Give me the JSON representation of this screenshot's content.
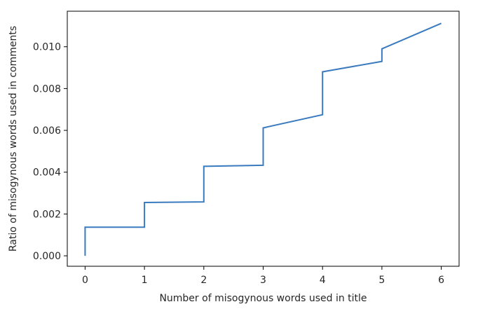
{
  "chart_data": {
    "type": "line",
    "title": "",
    "xlabel": "Number of misogynous words used in title",
    "ylabel": "Ratio of misogynous words used in comments",
    "xlim": [
      -0.3,
      6.3
    ],
    "ylim": [
      -0.0005,
      0.0117
    ],
    "xticks": [
      0,
      1,
      2,
      3,
      4,
      5,
      6
    ],
    "xtick_labels": [
      "0",
      "1",
      "2",
      "3",
      "4",
      "5",
      "6"
    ],
    "yticks": [
      0.0,
      0.002,
      0.004,
      0.006,
      0.008,
      0.01
    ],
    "ytick_labels": [
      "0.000",
      "0.002",
      "0.004",
      "0.006",
      "0.008",
      "0.010"
    ],
    "grid": false,
    "series": [
      {
        "color": "#3a7bbf",
        "x": [
          0,
          0,
          1,
          1,
          2,
          2,
          3,
          3,
          4,
          4,
          5,
          5,
          6
        ],
        "y": [
          0.0,
          0.00137,
          0.00137,
          0.00255,
          0.00258,
          0.00428,
          0.00433,
          0.00612,
          0.00675,
          0.0088,
          0.0093,
          0.0099,
          0.01112
        ]
      }
    ]
  }
}
